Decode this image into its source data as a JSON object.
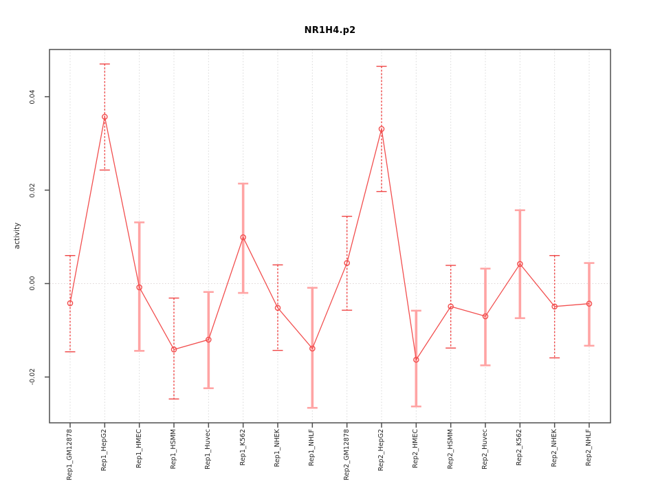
{
  "chart_data": {
    "type": "line",
    "title": "NR1H4.p2",
    "xlabel": "",
    "ylabel": "activity",
    "ylim": [
      -0.0298,
      0.0501
    ],
    "grid": "vertical dotted gridline at each category, dotted horizontal line at zero",
    "legend": "none",
    "yticks": [
      {
        "value": 0.04,
        "label": "0.04"
      },
      {
        "value": 0.02,
        "label": "0.02"
      },
      {
        "value": 0.0,
        "label": "0.00"
      },
      {
        "value": -0.02,
        "label": "-0.02"
      }
    ],
    "categories": [
      "Rep1_GM12878",
      "Rep1_HepG2",
      "Rep1_HMEC",
      "Rep1_HSMM",
      "Rep1_Huvec",
      "Rep1_K562",
      "Rep1_NHEK",
      "Rep1_NHLF",
      "Rep2_GM12878",
      "Rep2_HepG2",
      "Rep2_HMEC",
      "Rep2_HSMM",
      "Rep2_Huvec",
      "Rep2_K562",
      "Rep2_NHEK",
      "Rep2_NHLF"
    ],
    "points": [
      {
        "label": "Rep1_GM12878",
        "value": -0.0042,
        "upper": 0.006,
        "lower": -0.0146,
        "bar_style": "dashed"
      },
      {
        "label": "Rep1_HepG2",
        "value": 0.0357,
        "upper": 0.047,
        "lower": 0.0243,
        "bar_style": "dashed"
      },
      {
        "label": "Rep1_HMEC",
        "value": -0.0008,
        "upper": 0.0131,
        "lower": -0.0144,
        "bar_style": "thick"
      },
      {
        "label": "Rep1_HSMM",
        "value": -0.0141,
        "upper": -0.0031,
        "lower": -0.0247,
        "bar_style": "dashed"
      },
      {
        "label": "Rep1_Huvec",
        "value": -0.012,
        "upper": -0.0018,
        "lower": -0.0224,
        "bar_style": "thick"
      },
      {
        "label": "Rep1_K562",
        "value": 0.0099,
        "upper": 0.0214,
        "lower": -0.002,
        "bar_style": "thick"
      },
      {
        "label": "Rep1_NHEK",
        "value": -0.0052,
        "upper": 0.004,
        "lower": -0.0143,
        "bar_style": "dashed"
      },
      {
        "label": "Rep1_NHLF",
        "value": -0.0139,
        "upper": -0.0009,
        "lower": -0.0266,
        "bar_style": "thick"
      },
      {
        "label": "Rep2_GM12878",
        "value": 0.0044,
        "upper": 0.0144,
        "lower": -0.0057,
        "bar_style": "dashed"
      },
      {
        "label": "Rep2_HepG2",
        "value": 0.0331,
        "upper": 0.0465,
        "lower": 0.0197,
        "bar_style": "dashed"
      },
      {
        "label": "Rep2_HMEC",
        "value": -0.0163,
        "upper": -0.0058,
        "lower": -0.0263,
        "bar_style": "thick"
      },
      {
        "label": "Rep2_HSMM",
        "value": -0.0049,
        "upper": 0.0039,
        "lower": -0.0138,
        "bar_style": "dashed"
      },
      {
        "label": "Rep2_Huvec",
        "value": -0.007,
        "upper": 0.0032,
        "lower": -0.0175,
        "bar_style": "thick"
      },
      {
        "label": "Rep2_K562",
        "value": 0.0042,
        "upper": 0.0157,
        "lower": -0.0074,
        "bar_style": "thick"
      },
      {
        "label": "Rep2_NHEK",
        "value": -0.0049,
        "upper": 0.006,
        "lower": -0.0159,
        "bar_style": "dashed"
      },
      {
        "label": "Rep2_NHLF",
        "value": -0.0043,
        "upper": 0.0044,
        "lower": -0.0133,
        "bar_style": "thick"
      }
    ],
    "colors": {
      "series": "#f24e4e",
      "error_bar_dashed": "#ef4545",
      "error_bar_thick": "#ffa4a4",
      "grid": "#d9d9d9",
      "zero_line": "#ded6d6",
      "axis": "#4d4d4d",
      "text": "#262626"
    }
  }
}
